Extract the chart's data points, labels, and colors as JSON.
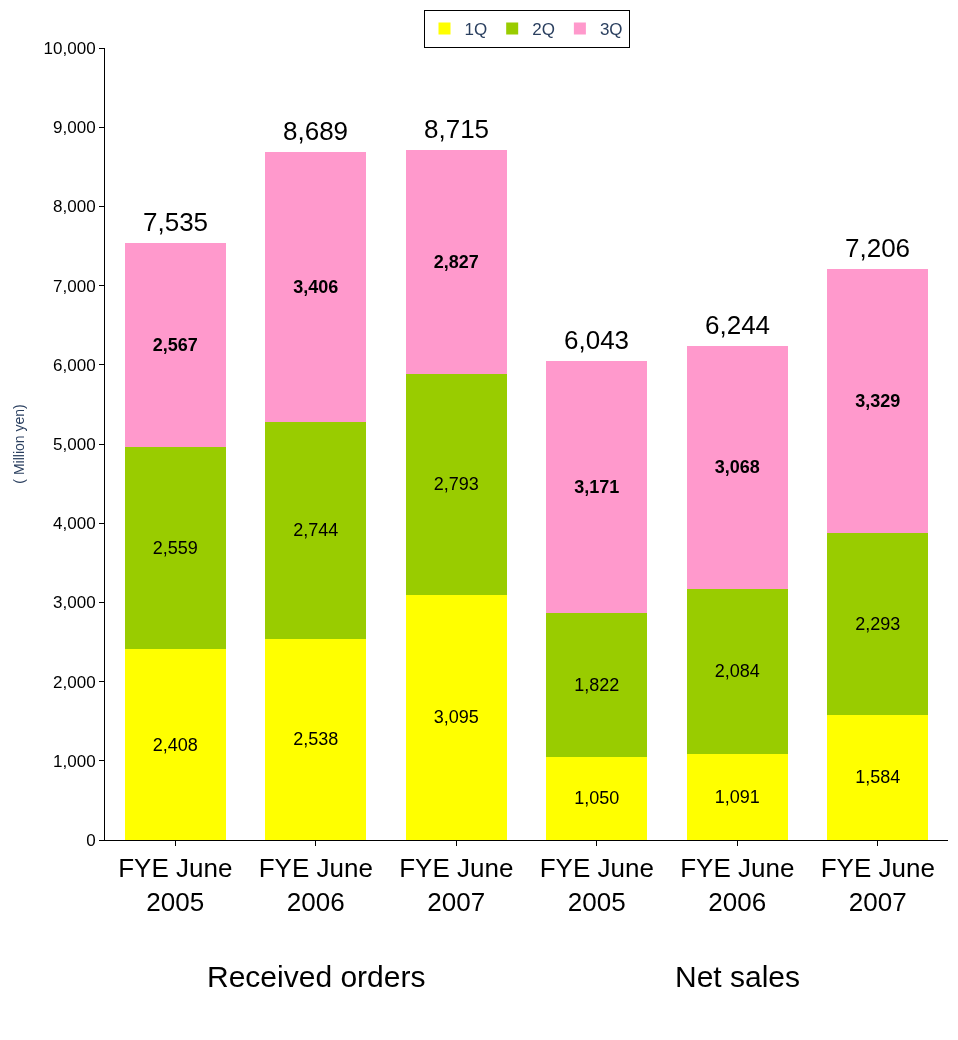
{
  "chart_data": {
    "type": "bar",
    "stacked": true,
    "ylabel": "( Million yen)",
    "categories": [
      "FYE June\n2005",
      "FYE June\n2006",
      "FYE June\n2007",
      "FYE June\n2005",
      "FYE June\n2006",
      "FYE June\n2007"
    ],
    "series": [
      {
        "name": "1Q",
        "color": "#ffff00",
        "values": [
          2408,
          2538,
          3095,
          1050,
          1091,
          1584
        ],
        "value_labels": [
          "2,408",
          "2,538",
          "3,095",
          "1,050",
          "1,091",
          "1,584"
        ]
      },
      {
        "name": "2Q",
        "color": "#99cc00",
        "values": [
          2559,
          2744,
          2793,
          1822,
          2084,
          2293
        ],
        "value_labels": [
          "2,559",
          "2,744",
          "2,793",
          "1,822",
          "2,084",
          "2,293"
        ]
      },
      {
        "name": "3Q",
        "color": "#ff99cc",
        "values": [
          2567,
          3406,
          2827,
          3171,
          3068,
          3329
        ],
        "value_labels": [
          "2,567",
          "3,406",
          "2,827",
          "3,171",
          "3,068",
          "3,329"
        ]
      }
    ],
    "totals": [
      "7,535",
      "8,689",
      "8,715",
      "6,043",
      "6,244",
      "7,206"
    ],
    "ylim": [
      0,
      10000
    ],
    "yticks": [
      0,
      {
        "value": 1000,
        "label": "1,000"
      },
      {
        "value": 2000,
        "label": "2,000"
      },
      {
        "value": 3000,
        "label": "3,000"
      },
      {
        "value": 4000,
        "label": "4,000"
      },
      {
        "value": 5000,
        "label": "5,000"
      },
      {
        "value": 6000,
        "label": "6,000"
      },
      {
        "value": 7000,
        "label": "7,000"
      },
      {
        "value": 8000,
        "label": "8,000"
      },
      {
        "value": 9000,
        "label": "9,000"
      },
      {
        "value": 10000,
        "label": "10,000"
      }
    ],
    "grid": false,
    "legend": "top",
    "annotations": [
      "Received orders",
      "Net sales"
    ]
  }
}
